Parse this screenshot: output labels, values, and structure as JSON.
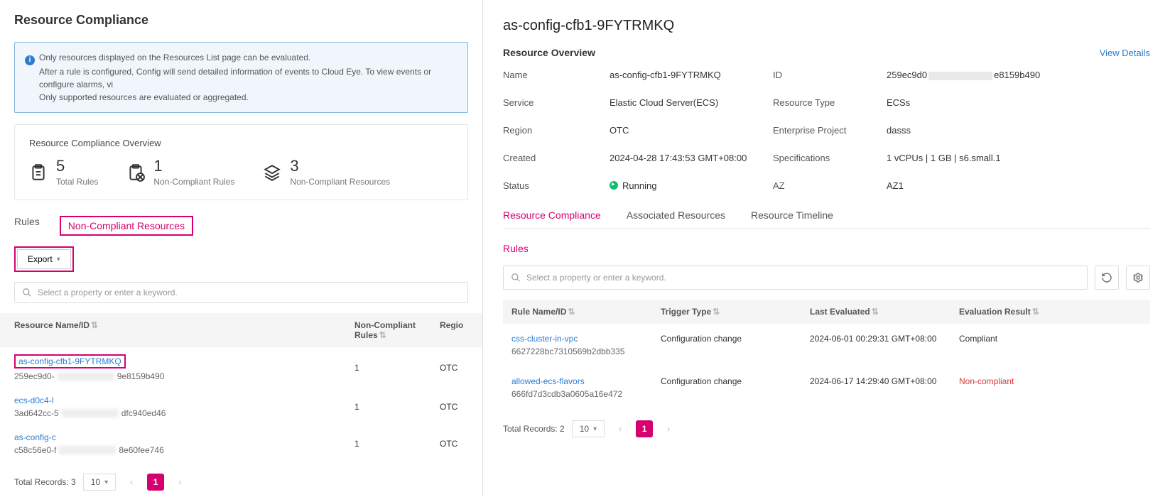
{
  "left": {
    "title": "Resource Compliance",
    "info": {
      "line1": "Only resources displayed on the Resources List page can be evaluated.",
      "line2": "After a rule is configured, Config will send detailed information of events to Cloud Eye. To view events or configure alarms, vi",
      "line3": "Only supported resources are evaluated or aggregated."
    },
    "overview": {
      "title": "Resource Compliance Overview",
      "stats": [
        {
          "num": "5",
          "label": "Total Rules"
        },
        {
          "num": "1",
          "label": "Non-Compliant Rules"
        },
        {
          "num": "3",
          "label": "Non-Compliant Resources"
        }
      ]
    },
    "tabs": {
      "rules": "Rules",
      "ncr": "Non-Compliant Resources"
    },
    "export": "Export",
    "search_placeholder": "Select a property or enter a keyword.",
    "table": {
      "th_name": "Resource Name/ID",
      "th_rules": "Non-Compliant Rules",
      "th_region": "Regio",
      "rows": [
        {
          "name": "as-config-cfb1-9FYTRMKQ",
          "id_pre": "259ec9d0-",
          "id_suf": "9e8159b490",
          "rules": "1",
          "region": "OTC",
          "hl": true
        },
        {
          "name": "ecs-d0c4-l",
          "id_pre": "3ad642cc-5",
          "id_suf": "dfc940ed46",
          "rules": "1",
          "region": "OTC",
          "hl": false
        },
        {
          "name": "as-config-c",
          "id_pre": "c58c56e0-f",
          "id_suf": "8e60fee746",
          "rules": "1",
          "region": "OTC",
          "hl": false
        }
      ]
    },
    "pagination": {
      "total": "Total Records: 3",
      "per": "10",
      "current": "1"
    }
  },
  "right": {
    "title": "as-config-cfb1-9FYTRMKQ",
    "overview_title": "Resource Overview",
    "view_details": "View Details",
    "kv": {
      "name_k": "Name",
      "name_v": "as-config-cfb1-9FYTRMKQ",
      "id_k": "ID",
      "id_pre": "259ec9d0",
      "id_suf": "e8159b490",
      "service_k": "Service",
      "service_v": "Elastic Cloud Server(ECS)",
      "rtype_k": "Resource Type",
      "rtype_v": "ECSs",
      "region_k": "Region",
      "region_v": "OTC",
      "ep_k": "Enterprise Project",
      "ep_v": "dasss",
      "created_k": "Created",
      "created_v": "2024-04-28 17:43:53 GMT+08:00",
      "spec_k": "Specifications",
      "spec_v": "1 vCPUs | 1 GB | s6.small.1",
      "status_k": "Status",
      "status_v": "Running",
      "az_k": "AZ",
      "az_v": "AZ1"
    },
    "tabs": {
      "rc": "Resource Compliance",
      "ar": "Associated Resources",
      "rt": "Resource Timeline"
    },
    "rules_title": "Rules",
    "search_placeholder": "Select a property or enter a keyword.",
    "table": {
      "th1": "Rule Name/ID",
      "th2": "Trigger Type",
      "th3": "Last Evaluated",
      "th4": "Evaluation Result",
      "rows": [
        {
          "name": "css-cluster-in-vpc",
          "id": "6627228bc7310569b2dbb335",
          "trigger": "Configuration change",
          "last": "2024-06-01 00:29:31 GMT+08:00",
          "result": "Compliant",
          "nc": false
        },
        {
          "name": "allowed-ecs-flavors",
          "id": "666fd7d3cdb3a0605a16e472",
          "trigger": "Configuration change",
          "last": "2024-06-17 14:29:40 GMT+08:00",
          "result": "Non-compliant",
          "nc": true
        }
      ]
    },
    "pagination": {
      "total": "Total Records: 2",
      "per": "10",
      "current": "1"
    }
  }
}
